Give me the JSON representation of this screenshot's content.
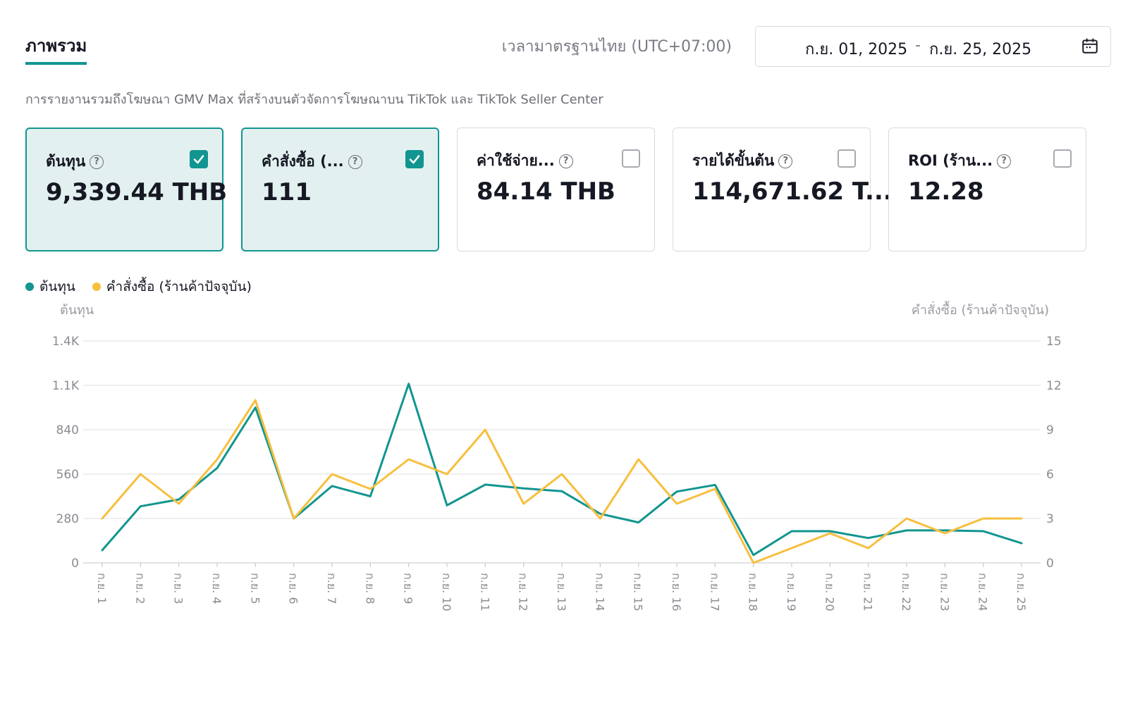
{
  "tab": {
    "label": "ภาพรวม"
  },
  "timezone": "เวลามาตรฐานไทย (UTC+07:00)",
  "date_range": {
    "start": "ก.ย. 01, 2025",
    "separator": "-",
    "end": "ก.ย. 25, 2025"
  },
  "subtitle": "การรายงานรวมถึงโฆษณา GMV Max ที่สร้างบนตัวจัดการโฆษณาบน TikTok และ TikTok Seller Center",
  "metrics": [
    {
      "label": "ต้นทุน",
      "value": "9,339.44 THB",
      "checked": true
    },
    {
      "label": "คำสั่งซื้อ (...",
      "value": "111",
      "checked": true
    },
    {
      "label": "ค่าใช้จ่าย...",
      "value": "84.14 THB",
      "checked": false
    },
    {
      "label": "รายได้ขั้นต้น",
      "value": "114,671.62 T...",
      "checked": false
    },
    {
      "label": "ROI (ร้าน...",
      "value": "12.28",
      "checked": false
    }
  ],
  "help_glyph": "?",
  "colors": {
    "accent": "#129590",
    "series1": "#129590",
    "series2": "#f7bf3e"
  },
  "legend": [
    {
      "name": "ต้นทุน",
      "color": "#129590"
    },
    {
      "name": "คำสั่งซื้อ (ร้านค้าปัจจุบัน)",
      "color": "#f7bf3e"
    }
  ],
  "chart_data": {
    "type": "line",
    "y_left_label": "ต้นทุน",
    "y_right_label": "คำสั่งซื้อ (ร้านค้าปัจจุบัน)",
    "y_left_ticks": [
      "0",
      "280",
      "560",
      "840",
      "1.1K",
      "1.4K"
    ],
    "y_right_ticks": [
      "0",
      "3",
      "6",
      "9",
      "12",
      "15"
    ],
    "ylim_left": [
      0,
      1400
    ],
    "ylim_right": [
      0,
      15
    ],
    "categories": [
      "ก.ย. 1",
      "ก.ย. 2",
      "ก.ย. 3",
      "ก.ย. 4",
      "ก.ย. 5",
      "ก.ย. 6",
      "ก.ย. 7",
      "ก.ย. 8",
      "ก.ย. 9",
      "ก.ย. 10",
      "ก.ย. 11",
      "ก.ย. 12",
      "ก.ย. 13",
      "ก.ย. 14",
      "ก.ย. 15",
      "ก.ย. 16",
      "ก.ย. 17",
      "ก.ย. 18",
      "ก.ย. 19",
      "ก.ย. 20",
      "ก.ย. 21",
      "ก.ย. 22",
      "ก.ย. 23",
      "ก.ย. 24",
      "ก.ย. 25"
    ],
    "grid": true,
    "series": [
      {
        "name": "ต้นทุน",
        "axis": "left",
        "values": [
          80,
          357,
          400,
          598,
          980,
          280,
          485,
          420,
          1130,
          363,
          494,
          470,
          452,
          310,
          255,
          450,
          492,
          50,
          200,
          200,
          157,
          205,
          205,
          200,
          124
        ]
      },
      {
        "name": "คำสั่งซื้อ (ร้านค้าปัจจุบัน)",
        "axis": "right",
        "values": [
          3,
          6,
          4,
          7,
          11,
          3,
          6,
          5,
          7,
          6,
          9,
          4,
          6,
          3,
          7,
          4,
          5,
          0,
          1,
          2,
          1,
          3,
          2,
          3,
          3
        ]
      }
    ]
  }
}
